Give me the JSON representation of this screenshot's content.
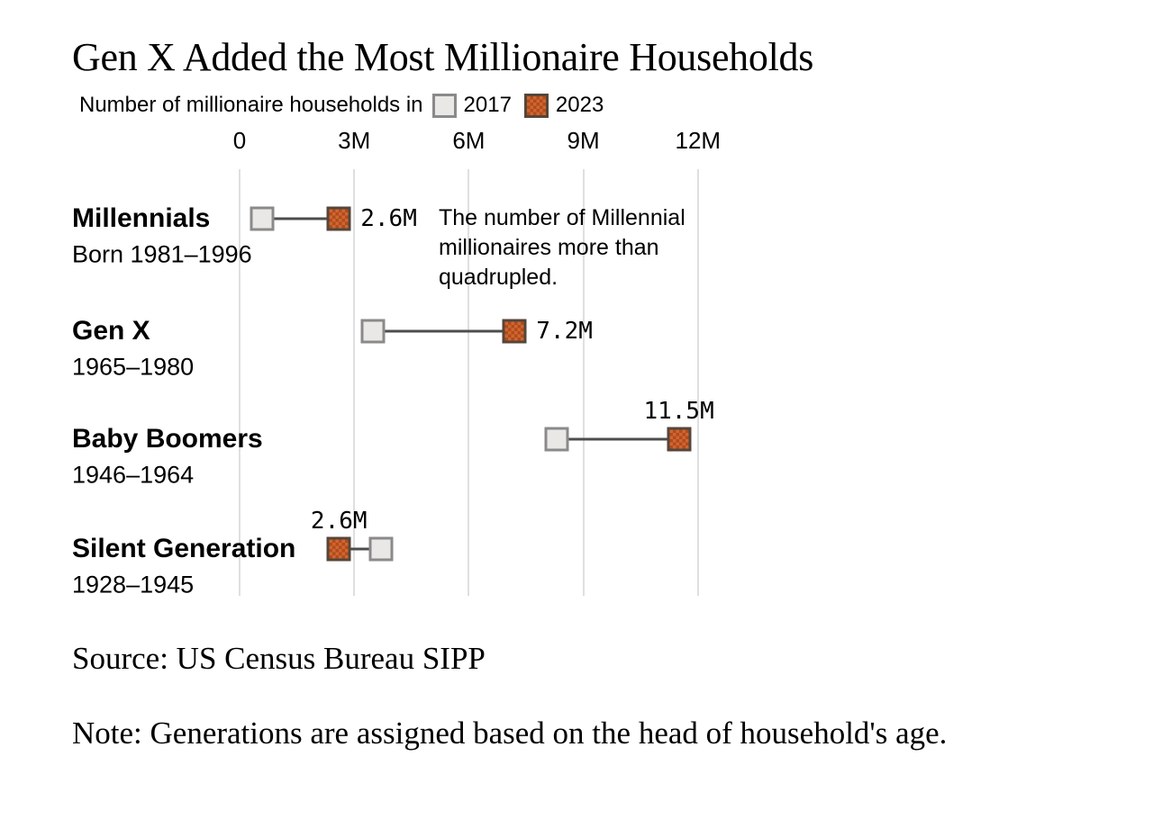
{
  "title": "Gen X Added the Most Millionaire Households",
  "legend": {
    "prefix": "Number of millionaire households in",
    "items": [
      {
        "label": "2017",
        "swatch": "gray-square-icon"
      },
      {
        "label": "2023",
        "swatch": "orange-checker-square-icon"
      }
    ]
  },
  "chart_data": {
    "type": "dumbbell",
    "title": "Gen X Added the Most Millionaire Households",
    "xlabel": "Number of millionaire households",
    "x_axis": {
      "tick_labels": [
        "0",
        "3M",
        "6M",
        "9M",
        "12M"
      ],
      "tick_values": [
        0,
        3,
        6,
        9,
        12
      ],
      "range": [
        0,
        12.5
      ],
      "gridlines": true
    },
    "series_years": [
      "2017",
      "2023"
    ],
    "rows": [
      {
        "label": "Millennials",
        "sublabel": "Born 1981–1996",
        "value_2017": 0.6,
        "value_2023": 2.6,
        "value_label": "2.6M",
        "value_label_position": "right"
      },
      {
        "label": "Gen X",
        "sublabel": "1965–1980",
        "value_2017": 3.5,
        "value_2023": 7.2,
        "value_label": "7.2M",
        "value_label_position": "right"
      },
      {
        "label": "Baby Boomers",
        "sublabel": "1946–1964",
        "value_2017": 8.3,
        "value_2023": 11.5,
        "value_label": "11.5M",
        "value_label_position": "above"
      },
      {
        "label": "Silent Generation",
        "sublabel": "1928–1945",
        "value_2017": 3.7,
        "value_2023": 2.6,
        "value_label": "2.6M",
        "value_label_position": "above"
      }
    ],
    "annotation": "The number of Millennial millionaires more than quadrupled.",
    "colors": {
      "fill_2017": "#e9e8e6",
      "border_2017": "#8a8a8a",
      "fill_2023": "#d0662f",
      "fill_2023_dark": "#b04b1e",
      "border_2023": "#55463a",
      "connector": "#4d4d4d",
      "gridline": "#dfdfdf"
    },
    "legend_position": "top"
  },
  "source": "Source: US Census Bureau SIPP",
  "note": "Note: Generations are assigned based on the head of household's age."
}
